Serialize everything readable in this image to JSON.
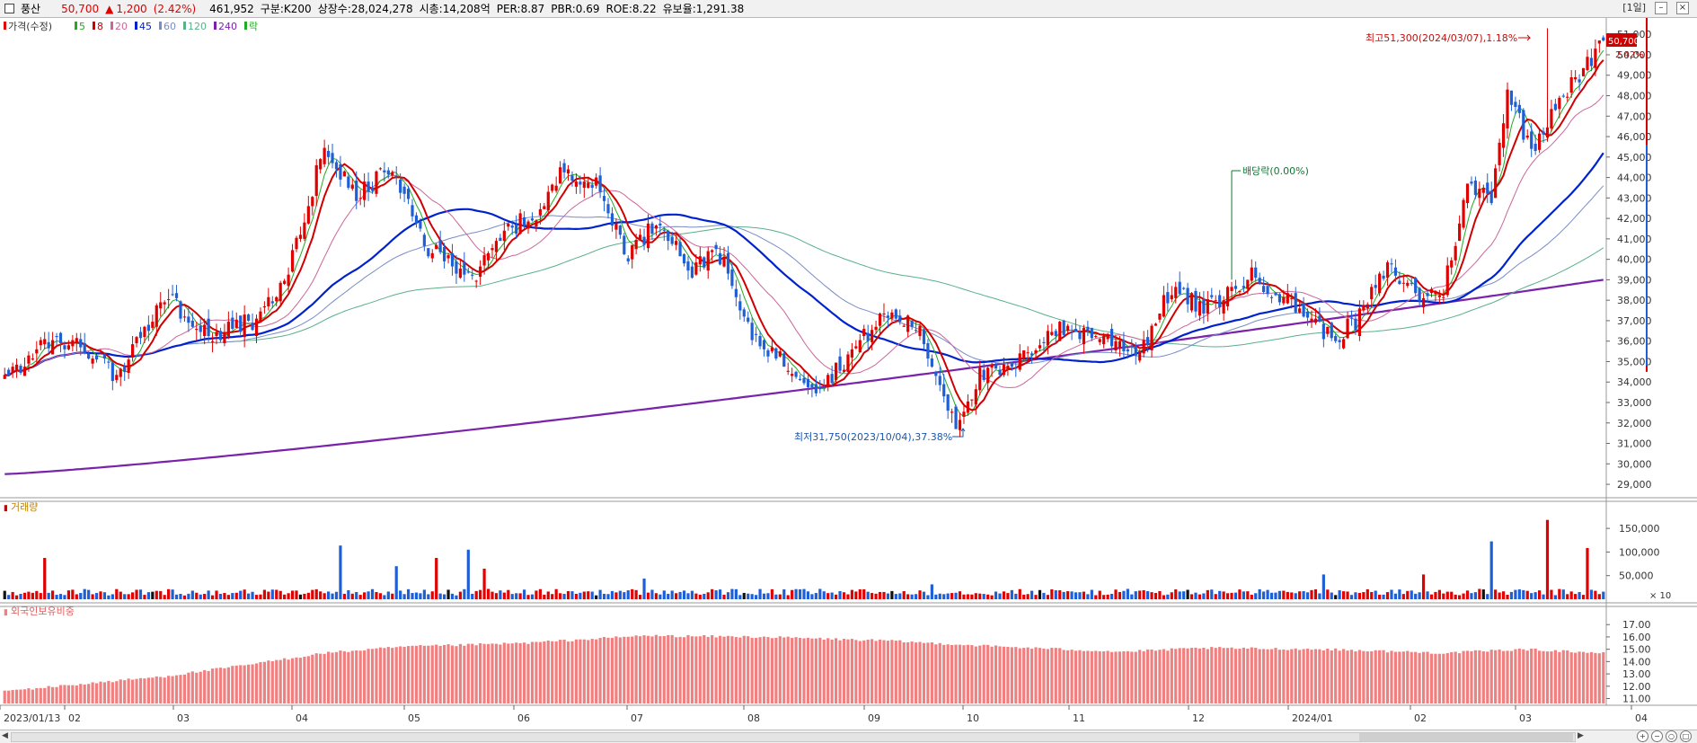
{
  "header": {
    "stock_name": "풍산",
    "price": "50,700",
    "change_arrow": "▲",
    "change": "1,200",
    "change_pct": "(2.42%)",
    "volume": "461,952",
    "market": "구분:K200",
    "shares": "상장수:28,024,278",
    "market_cap": "시총:14,208억",
    "per": "PER:8.87",
    "pbr": "PBR:0.69",
    "roe": "ROE:8.22",
    "float": "유보율:1,291.38",
    "period": "[1일]"
  },
  "colors": {
    "up": "#e00000",
    "down": "#1f5fd6",
    "ma5": "#22aa22",
    "ma8": "#d00000",
    "ma20": "#cc6699",
    "ma45": "#0022cc",
    "ma60": "#7a8cc8",
    "ma120": "#59b08a",
    "ma240": "#7a22aa",
    "foreign": "#f08080"
  },
  "legend": {
    "price": "가격(수정)",
    "ma5": "5",
    "ma8": "8",
    "ma20": "20",
    "ma45": "45",
    "ma60": "60",
    "ma120": "120",
    "ma240": "240",
    "ex": "락"
  },
  "panels": {
    "volume_title": "거래량",
    "foreign_title": "외국인보유비중",
    "volume_unit": "× 10"
  },
  "annotations": {
    "high": "최고51,300(2024/03/07),1.18%",
    "low": "최저31,750(2023/10/04),37.38%",
    "dividend": "배당락(0.00%)",
    "last_price": "50,700",
    "last_pct": "2.42%"
  },
  "chart_data": {
    "type": "candlestick",
    "price_ticks": [
      29000,
      30000,
      31000,
      32000,
      33000,
      34000,
      35000,
      36000,
      37000,
      38000,
      39000,
      40000,
      41000,
      42000,
      43000,
      44000,
      45000,
      46000,
      47000,
      48000,
      49000,
      50000,
      51000
    ],
    "price_range": [
      28300,
      51800
    ],
    "volume_ticks": [
      50000,
      100000,
      150000
    ],
    "volume_range": [
      0,
      175000
    ],
    "foreign_ticks": [
      11,
      12,
      13,
      14,
      15,
      16,
      17
    ],
    "foreign_range": [
      10.6,
      17.6
    ],
    "x_labels": [
      "2023/01/13",
      "02",
      "03",
      "04",
      "05",
      "06",
      "07",
      "08",
      "09",
      "10",
      "11",
      "12",
      "2024/01",
      "02",
      "03",
      "04"
    ],
    "keypoints": [
      [
        0,
        34000
      ],
      [
        12,
        36200
      ],
      [
        22,
        35500
      ],
      [
        28,
        34200
      ],
      [
        40,
        38200
      ],
      [
        52,
        36300
      ],
      [
        62,
        37000
      ],
      [
        70,
        38800
      ],
      [
        80,
        45500
      ],
      [
        88,
        43000
      ],
      [
        96,
        44500
      ],
      [
        106,
        40500
      ],
      [
        118,
        39200
      ],
      [
        126,
        41500
      ],
      [
        134,
        42300
      ],
      [
        140,
        44500
      ],
      [
        148,
        43600
      ],
      [
        156,
        40300
      ],
      [
        164,
        42000
      ],
      [
        172,
        39300
      ],
      [
        178,
        40700
      ],
      [
        186,
        36500
      ],
      [
        196,
        34800
      ],
      [
        204,
        33700
      ],
      [
        212,
        35500
      ],
      [
        220,
        37300
      ],
      [
        228,
        36800
      ],
      [
        234,
        33900
      ],
      [
        238,
        32000
      ],
      [
        244,
        34300
      ],
      [
        252,
        34600
      ],
      [
        262,
        36600
      ],
      [
        272,
        36400
      ],
      [
        284,
        35500
      ],
      [
        292,
        38600
      ],
      [
        300,
        37500
      ],
      [
        312,
        39200
      ],
      [
        318,
        38400
      ],
      [
        326,
        37300
      ],
      [
        332,
        36100
      ],
      [
        338,
        36900
      ],
      [
        346,
        39600
      ],
      [
        354,
        38200
      ],
      [
        360,
        38500
      ],
      [
        366,
        43500
      ],
      [
        372,
        43200
      ],
      [
        376,
        48300
      ],
      [
        382,
        45300
      ],
      [
        388,
        47700
      ],
      [
        394,
        48900
      ],
      [
        400,
        50700
      ]
    ],
    "n": 401,
    "high": {
      "value": 51300,
      "date": "2024/03/07"
    },
    "low": {
      "value": 31750,
      "date": "2023/10/04"
    },
    "last": {
      "close": 50700,
      "change": 1200,
      "pct": 2.42
    }
  }
}
